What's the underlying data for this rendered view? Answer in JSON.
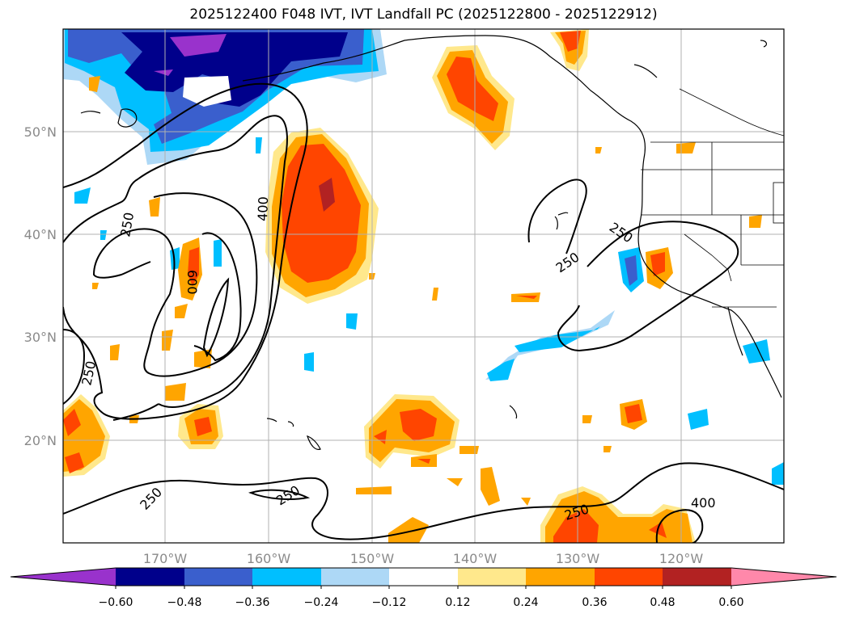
{
  "title": "2025122400 F048 IVT, IVT Landfall PC (2025122800 - 2025122912)",
  "map": {
    "lon_labels": [
      "170°W",
      "160°W",
      "150°W",
      "140°W",
      "130°W",
      "120°W"
    ],
    "lat_labels": [
      "50°N",
      "40°N",
      "30°N",
      "20°N"
    ],
    "contour_labels": [
      "250",
      "600",
      "400",
      "250",
      "250",
      "250",
      "250",
      "250",
      "250",
      "400"
    ]
  },
  "colorbar": {
    "colors": [
      "#9932cc",
      "#00008b",
      "#3a5fcd",
      "#00bfff",
      "#add8f6",
      "#ffffff",
      "#ffe88c",
      "#ffa500",
      "#ff4500",
      "#b22222",
      "#ff88aa"
    ],
    "tick_labels": [
      "−0.60",
      "−0.48",
      "−0.36",
      "−0.24",
      "−0.12",
      "0.12",
      "0.24",
      "0.36",
      "0.48",
      "0.60"
    ]
  }
}
